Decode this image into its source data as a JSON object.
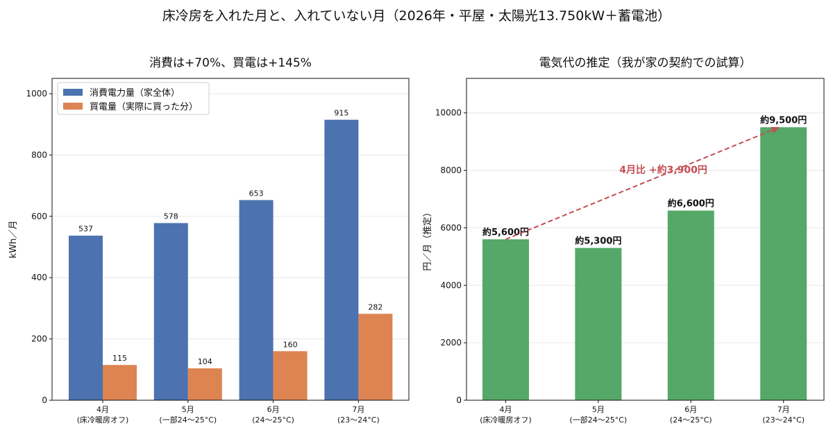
{
  "title": "床冷房を入れた月と、入れていない月（2026年・平屋・太陽光13.750kW＋蓄電池）",
  "chart_data": [
    {
      "type": "bar",
      "title": "消費は+70%、買電は+145%",
      "ylabel": "kWh／月",
      "ylim": [
        0,
        1050
      ],
      "yticks": [
        0,
        200,
        400,
        600,
        800,
        1000
      ],
      "grid": true,
      "legend_position": "top-left",
      "categories": [
        "4月\n(床冷暖房オフ)",
        "5月\n(一部24〜25°C)",
        "6月\n(24〜25°C)",
        "7月\n(23〜24°C)"
      ],
      "series": [
        {
          "name": "消費電力量（家全体）",
          "values": [
            537,
            578,
            653,
            915
          ],
          "color": "#4c72b0"
        },
        {
          "name": "買電量（実際に買った分）",
          "values": [
            115,
            104,
            160,
            282
          ],
          "color": "#dd8452"
        }
      ]
    },
    {
      "type": "bar",
      "title": "電気代の推定（我が家の契約での試算）",
      "ylabel": "円／月（推定）",
      "ylim": [
        0,
        11200
      ],
      "yticks": [
        0,
        2000,
        4000,
        6000,
        8000,
        10000
      ],
      "grid": true,
      "categories": [
        "4月\n(床冷暖房オフ)",
        "5月\n(一部24〜25°C)",
        "6月\n(24〜25°C)",
        "7月\n(23〜24°C)"
      ],
      "series": [
        {
          "values": [
            5600,
            5300,
            6600,
            9500
          ],
          "color": "#55a868"
        }
      ],
      "value_labels": [
        "約5,600円",
        "約5,300円",
        "約6,600円",
        "約9,500円"
      ],
      "annotation": {
        "text": "4月比 +約3,900円",
        "from": [
          0,
          5600
        ],
        "to": [
          3,
          9500
        ],
        "color": "#c44e52"
      }
    }
  ]
}
